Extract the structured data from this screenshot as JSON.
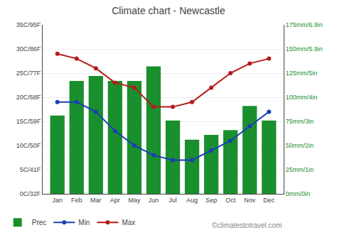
{
  "chart_data": {
    "type": "bar",
    "title": "Climate chart - Newcastle",
    "categories": [
      "Jan",
      "Feb",
      "Mar",
      "Apr",
      "May",
      "Jun",
      "Jul",
      "Aug",
      "Sep",
      "Oct",
      "Nov",
      "Dec"
    ],
    "series": [
      {
        "name": "Prec",
        "type": "bar",
        "axis": "y2",
        "color": "#1a8f2e",
        "values": [
          81,
          117,
          122,
          117,
          117,
          132,
          76,
          56,
          61,
          66,
          91,
          76
        ]
      },
      {
        "name": "Min",
        "type": "line",
        "color": "#1a3fb5",
        "marker": "circle",
        "line_style": "solid",
        "values": [
          19,
          19,
          17,
          13,
          10,
          8,
          7,
          7,
          9,
          11,
          14,
          17
        ]
      },
      {
        "name": "Max",
        "type": "line",
        "color": "#b51a1a",
        "marker": "circle",
        "line_style": "solid",
        "values": [
          29,
          28,
          26,
          23,
          22,
          18,
          18,
          19,
          22,
          25,
          27,
          28
        ]
      }
    ],
    "ylim": [
      0,
      35
    ],
    "yticks": [
      {
        "value": 0,
        "label": "0C/32F"
      },
      {
        "value": 5,
        "label": "5C/41F"
      },
      {
        "value": 10,
        "label": "10C/50F"
      },
      {
        "value": 15,
        "label": "15C/59F"
      },
      {
        "value": 20,
        "label": "20C/68F"
      },
      {
        "value": 25,
        "label": "25C/77F"
      },
      {
        "value": 30,
        "label": "30C/86F"
      },
      {
        "value": 35,
        "label": "35C/95F"
      }
    ],
    "y2lim": [
      0,
      175
    ],
    "y2ticks": [
      {
        "value": 0,
        "label": "0mm/0in"
      },
      {
        "value": 25,
        "label": "25mm/1in"
      },
      {
        "value": 50,
        "label": "50mm/2in"
      },
      {
        "value": 75,
        "label": "75mm/3in"
      },
      {
        "value": 100,
        "label": "100mm/4in"
      },
      {
        "value": 125,
        "label": "125mm/5in"
      },
      {
        "value": 150,
        "label": "150mm/5.9in"
      },
      {
        "value": 175,
        "label": "175mm/6.9in"
      }
    ],
    "grid": true,
    "legend": "lower left",
    "annotations": [
      "©climatestotravel.com"
    ]
  }
}
